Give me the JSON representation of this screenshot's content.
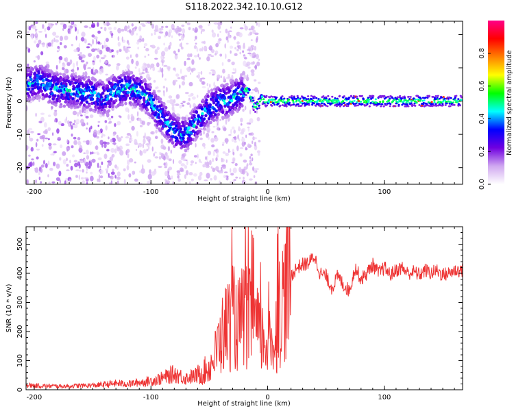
{
  "chart_data": [
    {
      "type": "heatmap",
      "title": "S118.2022.342.10.10.G12",
      "xlabel": "Height of straight line (km)",
      "ylabel": "Frequency (Hz)",
      "xlim": [
        -207,
        167
      ],
      "ylim": [
        -25,
        24
      ],
      "x_ticks": [
        -200,
        -100,
        0,
        100
      ],
      "y_ticks": [
        -20,
        -10,
        0,
        10,
        20
      ],
      "grid": false,
      "colorbar": {
        "label": "Normalized spectral amplitude",
        "range": [
          0.0,
          1.0
        ],
        "ticks": [
          0.0,
          0.2,
          0.4,
          0.6,
          0.8
        ],
        "colors": [
          "#ffffff",
          "#d0a8f0",
          "#7000e0",
          "#0000ff",
          "#00ffff",
          "#00ff00",
          "#ffff00",
          "#ff8000",
          "#ff0000",
          "#ff0088"
        ]
      },
      "ridge": {
        "x": [
          -205,
          -195,
          -185,
          -175,
          -165,
          -150,
          -140,
          -130,
          -120,
          -110,
          -100,
          -95,
          -90,
          -85,
          -80,
          -75,
          -70,
          -65,
          -60,
          -55,
          -50,
          -45,
          -40,
          -35,
          -30,
          -25,
          -20,
          -17,
          -14,
          -11,
          -8,
          -5,
          -2,
          0,
          5,
          20,
          40,
          60,
          80,
          100,
          120,
          140,
          167
        ],
        "y": [
          5,
          6,
          4,
          3,
          3,
          2,
          1,
          3,
          4,
          3,
          0,
          -3,
          -5,
          -7,
          -9,
          -10,
          -10,
          -8,
          -6,
          -4,
          -2,
          -1,
          0,
          0,
          1,
          2,
          3,
          3.5,
          1,
          -2,
          -1,
          1,
          0,
          0,
          0,
          0,
          0,
          0,
          0,
          0,
          0,
          0,
          0
        ]
      }
    },
    {
      "type": "line",
      "title": "",
      "xlabel": "Height of straight line (km)",
      "ylabel": "SNR (10 * v/v)",
      "xlim": [
        -207,
        167
      ],
      "ylim": [
        0,
        560
      ],
      "x_ticks": [
        -200,
        -100,
        0,
        100
      ],
      "y_ticks": [
        0,
        100,
        200,
        300,
        400,
        500
      ],
      "grid": false,
      "series": [
        {
          "color": "#ee3333",
          "x": [
            -205,
            -190,
            -175,
            -160,
            -145,
            -130,
            -120,
            -110,
            -100,
            -90,
            -80,
            -70,
            -60,
            -50,
            -45,
            -40,
            -35,
            -30,
            -25,
            -20,
            -15,
            -10,
            -5,
            0,
            5,
            10,
            15,
            20,
            25,
            30,
            35,
            40,
            45,
            50,
            55,
            60,
            65,
            70,
            75,
            80,
            85,
            90,
            95,
            100,
            105,
            110,
            115,
            120,
            125,
            130,
            135,
            140,
            145,
            150,
            155,
            160,
            167
          ],
          "y": [
            15,
            13,
            12,
            14,
            16,
            22,
            20,
            25,
            30,
            40,
            55,
            40,
            50,
            75,
            120,
            180,
            220,
            250,
            220,
            260,
            240,
            210,
            180,
            160,
            150,
            270,
            340,
            390,
            420,
            430,
            435,
            460,
            400,
            390,
            350,
            390,
            360,
            340,
            420,
            380,
            400,
            430,
            400,
            420,
            395,
            410,
            420,
            400,
            405,
            395,
            410,
            400,
            410,
            395,
            400,
            410,
            410
          ]
        }
      ]
    }
  ]
}
